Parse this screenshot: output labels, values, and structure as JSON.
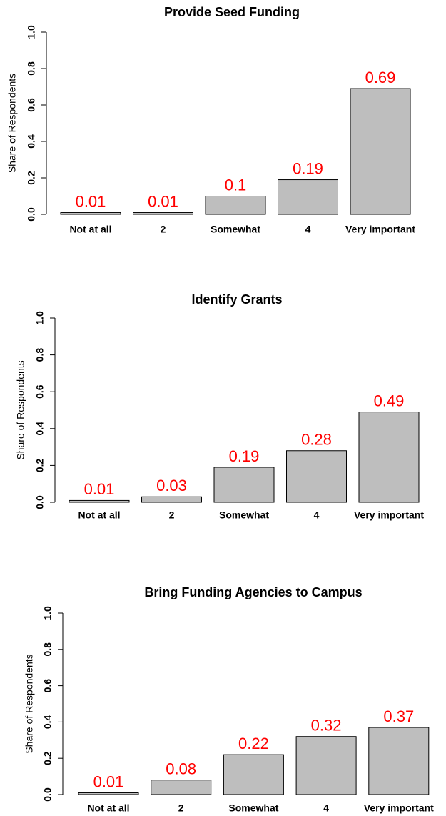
{
  "chart_data": [
    {
      "type": "bar",
      "title": "Provide Seed Funding",
      "y_label": "Share of Respondents",
      "categories": [
        "Not at all",
        "2",
        "Somewhat",
        "4",
        "Very important"
      ],
      "values": [
        0.01,
        0.01,
        0.1,
        0.19,
        0.69
      ],
      "color": "#bebebe",
      "value_label_color": "#ff0000",
      "ylim": [
        0,
        1
      ],
      "yticks": [
        {
          "value": 0,
          "label": "0.0"
        },
        0.2,
        0.4,
        0.6,
        0.8,
        {
          "value": 1,
          "label": "1.0"
        }
      ]
    },
    {
      "type": "bar",
      "title": "Identify Grants",
      "y_label": "Share of Respondents",
      "categories": [
        "Not at all",
        "2",
        "Somewhat",
        "4",
        "Very important"
      ],
      "values": [
        0.01,
        0.03,
        0.19,
        0.28,
        0.49
      ],
      "color": "#bebebe",
      "value_label_color": "#ff0000",
      "ylim": [
        0,
        1
      ],
      "yticks": [
        {
          "value": 0,
          "label": "0.0"
        },
        0.2,
        0.4,
        0.6,
        0.8,
        {
          "value": 1,
          "label": "1.0"
        }
      ]
    },
    {
      "type": "bar",
      "title": "Bring Funding Agencies to Campus",
      "y_label": "Share of Respondents",
      "categories": [
        "Not at all",
        "2",
        "Somewhat",
        "4",
        "Very important"
      ],
      "values": [
        0.01,
        0.08,
        0.22,
        0.32,
        0.37
      ],
      "color": "#bebebe",
      "value_label_color": "#ff0000",
      "ylim": [
        0,
        1
      ],
      "yticks": [
        {
          "value": 0,
          "label": "0.0"
        },
        0.2,
        0.4,
        0.6,
        0.8,
        {
          "value": 1,
          "label": "1.0"
        }
      ]
    }
  ]
}
